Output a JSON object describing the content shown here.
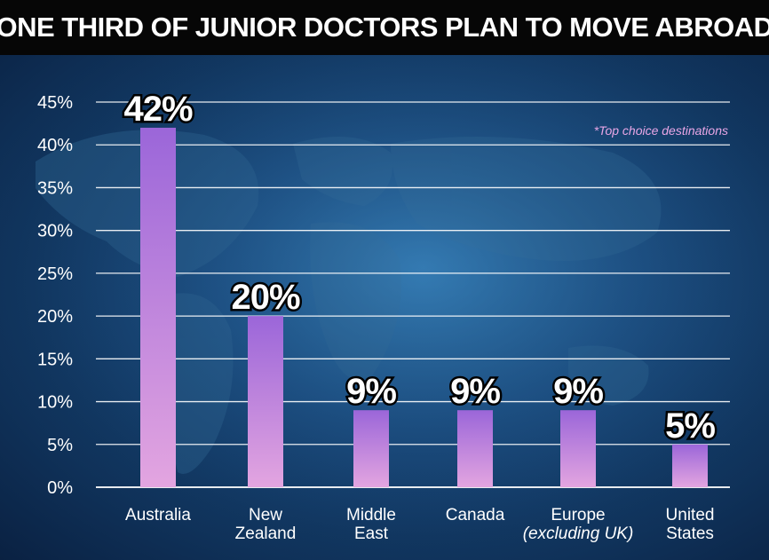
{
  "title": "ONE THIRD OF JUNIOR DOCTORS PLAN TO MOVE ABROAD",
  "note": "*Top choice destinations",
  "colors": {
    "bar_top": "#9b66d9",
    "bar_bottom": "#e3a5e0",
    "grid": "#ffffff",
    "note": "#e9a6e6"
  },
  "chart_data": {
    "type": "bar",
    "categories": [
      [
        "Australia"
      ],
      [
        "New",
        "Zealand"
      ],
      [
        "Middle",
        "East"
      ],
      [
        "Canada"
      ],
      [
        "Europe",
        "(excluding UK)"
      ],
      [
        "United",
        "States"
      ]
    ],
    "values": [
      42,
      20,
      9,
      9,
      9,
      5
    ],
    "data_labels": [
      "42%",
      "20%",
      "9%",
      "9%",
      "9%",
      "5%"
    ],
    "yticks": [
      "0%",
      "5%",
      "10%",
      "15%",
      "20%",
      "25%",
      "30%",
      "35%",
      "40%",
      "45%"
    ],
    "ylim": [
      0,
      45
    ],
    "grid": true
  }
}
